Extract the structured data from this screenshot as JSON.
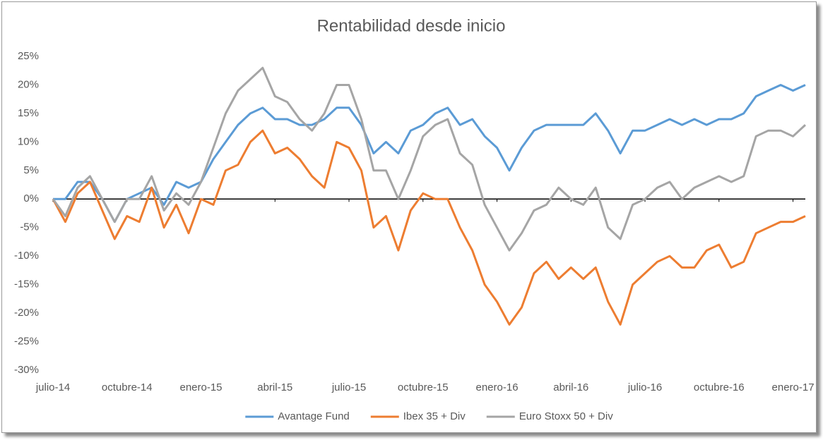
{
  "chart_data": {
    "type": "line",
    "title": "Rentabilidad desde inicio",
    "categories": [
      "julio-14",
      null,
      null,
      null,
      null,
      null,
      "octubre-14",
      null,
      null,
      null,
      null,
      null,
      "enero-15",
      null,
      null,
      null,
      null,
      null,
      "abril-15",
      null,
      null,
      null,
      null,
      null,
      "julio-15",
      null,
      null,
      null,
      null,
      null,
      "octubre-15",
      null,
      null,
      null,
      null,
      null,
      "enero-16",
      null,
      null,
      null,
      null,
      null,
      "abril-16",
      null,
      null,
      null,
      null,
      null,
      "julio-16",
      null,
      null,
      null,
      null,
      null,
      "octubre-16",
      null,
      null,
      null,
      null,
      null,
      "enero-17",
      null
    ],
    "series": [
      {
        "name": "Avantage Fund",
        "color": "#5b9bd5",
        "values": [
          0,
          0,
          3,
          3,
          0,
          -4,
          0,
          1,
          2,
          -1,
          3,
          2,
          3,
          7,
          10,
          13,
          15,
          16,
          14,
          14,
          13,
          13,
          14,
          16,
          16,
          13,
          8,
          10,
          8,
          12,
          13,
          15,
          16,
          13,
          14,
          11,
          9,
          5,
          9,
          12,
          13,
          13,
          13,
          13,
          15,
          12,
          8,
          12,
          12,
          13,
          14,
          13,
          14,
          13,
          14,
          14,
          15,
          18,
          19,
          20,
          19,
          20
        ]
      },
      {
        "name": "Ibex 35 + Div",
        "color": "#ed7d31",
        "values": [
          0,
          -4,
          1,
          3,
          -2,
          -7,
          -3,
          -4,
          2,
          -5,
          -1,
          -6,
          0,
          -1,
          5,
          6,
          10,
          12,
          8,
          9,
          7,
          4,
          2,
          10,
          9,
          5,
          -5,
          -3,
          -9,
          -2,
          1,
          0,
          0,
          -5,
          -9,
          -15,
          -18,
          -22,
          -19,
          -13,
          -11,
          -14,
          -12,
          -14,
          -12,
          -18,
          -22,
          -15,
          -13,
          -11,
          -10,
          -12,
          -12,
          -9,
          -8,
          -12,
          -11,
          -6,
          -5,
          -4,
          -4,
          -3
        ]
      },
      {
        "name": "Euro Stoxx 50 + Div",
        "color": "#a5a5a5",
        "values": [
          0,
          -3,
          2,
          4,
          0,
          -4,
          0,
          0,
          4,
          -2,
          1,
          -1,
          3,
          9,
          15,
          19,
          21,
          23,
          18,
          17,
          14,
          12,
          15,
          20,
          20,
          14,
          5,
          5,
          0,
          5,
          11,
          13,
          14,
          8,
          6,
          -1,
          -5,
          -9,
          -6,
          -2,
          -1,
          2,
          0,
          -1,
          2,
          -5,
          -7,
          -1,
          0,
          2,
          3,
          0,
          2,
          3,
          4,
          3,
          4,
          11,
          12,
          12,
          11,
          13
        ]
      }
    ],
    "ylim": [
      -30,
      25
    ],
    "yticks": [
      {
        "value": -30,
        "label": "-30%"
      },
      {
        "value": -25,
        "label": "-25%"
      },
      {
        "value": -20,
        "label": "-20%"
      },
      {
        "value": -15,
        "label": "-15%"
      },
      {
        "value": -10,
        "label": "-10%"
      },
      {
        "value": -5,
        "label": "-5%"
      },
      {
        "value": 0,
        "label": "0%"
      },
      {
        "value": 5,
        "label": "5%"
      },
      {
        "value": 10,
        "label": "10%"
      },
      {
        "value": 15,
        "label": "15%"
      },
      {
        "value": 20,
        "label": "20%"
      },
      {
        "value": 25,
        "label": "25%"
      }
    ],
    "grid": false,
    "legend": "bottom"
  }
}
